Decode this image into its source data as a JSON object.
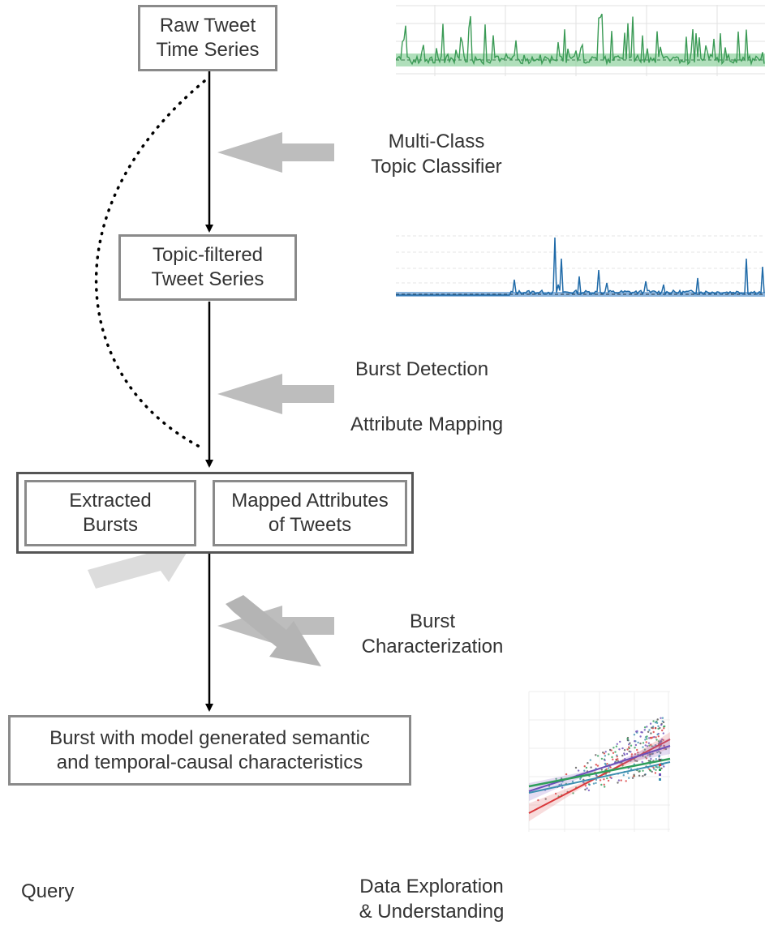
{
  "nodes": {
    "raw_series": {
      "line1": "Raw Tweet",
      "line2": "Time Series"
    },
    "topic_filtered": {
      "line1": "Topic-filtered",
      "line2": "Tweet Series"
    },
    "extracted_bursts": {
      "line1": "Extracted",
      "line2": "Bursts"
    },
    "mapped_attributes": {
      "line1": "Mapped Attributes",
      "line2": "of Tweets"
    },
    "burst_model": {
      "line1": "Burst with model generated semantic",
      "line2": "and temporal-causal characteristics"
    }
  },
  "steps": {
    "classifier": {
      "line1": "Multi-Class",
      "line2": "Topic Classifier"
    },
    "burst_detection": "Burst Detection",
    "attribute_mapping": "Attribute Mapping",
    "characterization": {
      "line1": "Burst",
      "line2": "Characterization"
    }
  },
  "outputs": {
    "query": "Query",
    "exploration": {
      "line1": "Data Exploration",
      "line2": "& Understanding"
    }
  },
  "colors": {
    "box_border": "#8a8a8a",
    "outer_border": "#555555",
    "flow_arrow": "#000000",
    "step_arrow": "#bdbdbd",
    "query_arrow": "#dcdcdc",
    "exploration_arrow": "#b4b4b4",
    "raw_series_line": "#3a9a55",
    "raw_series_band": "#8fd19e",
    "topic_series_line": "#1f6aa8",
    "topic_series_band": "#6fa3d4"
  }
}
